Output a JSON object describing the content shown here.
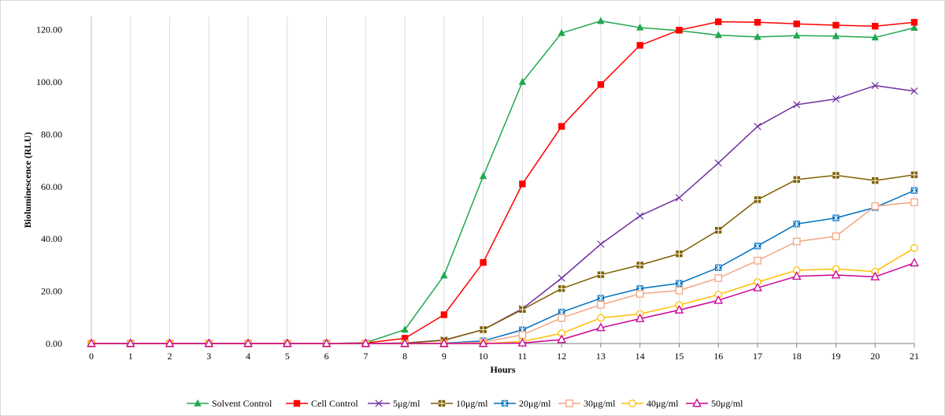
{
  "chart_data": {
    "type": "line",
    "xlabel": "Hours",
    "ylabel": "Bioluminescence (RLU)",
    "x": [
      0,
      1,
      2,
      3,
      4,
      5,
      6,
      7,
      8,
      9,
      10,
      11,
      12,
      13,
      14,
      15,
      16,
      17,
      18,
      19,
      20,
      21
    ],
    "ylim": [
      0,
      120
    ],
    "yticks": [
      "0.00",
      "20.00",
      "40.00",
      "60.00",
      "80.00",
      "100.00",
      "120.00"
    ],
    "grid": "vertical",
    "legend_position": "bottom",
    "series": [
      {
        "name": "Solvent Control",
        "color": "#1fa84f",
        "marker": "triangle",
        "values": [
          0,
          0,
          0,
          0,
          0,
          0,
          0,
          0.3,
          5.3,
          26,
          64,
          100,
          118.7,
          123.3,
          120.8,
          119.6,
          117.9,
          117.2,
          117.7,
          117.5,
          117.0,
          120.7
        ]
      },
      {
        "name": "Cell Control",
        "color": "#ff0000",
        "marker": "square",
        "values": [
          0,
          0,
          0,
          0,
          0,
          0,
          0,
          0.2,
          2.0,
          11,
          31,
          61,
          83,
          99,
          114,
          119.8,
          123,
          122.8,
          122.2,
          121.7,
          121.3,
          122.8
        ]
      },
      {
        "name": "5μg/ml",
        "color": "#7030a0",
        "marker": "x",
        "values": [
          0,
          0,
          0,
          0,
          0,
          0,
          0,
          0,
          0.2,
          1.3,
          5.3,
          13.3,
          25,
          38,
          48.8,
          55.7,
          69,
          83,
          91.3,
          93.5,
          98.6,
          96.5
        ]
      },
      {
        "name": "10μg/ml",
        "color": "#7f6000",
        "marker": "square-plus",
        "values": [
          0,
          0,
          0,
          0,
          0,
          0,
          0,
          0,
          0.1,
          1.2,
          5.3,
          13,
          21,
          26.3,
          30,
          34.3,
          43.3,
          55,
          62.7,
          64.3,
          62.3,
          64.5
        ]
      },
      {
        "name": "20μg/ml",
        "color": "#0070c0",
        "marker": "asterisk-square",
        "values": [
          0,
          0,
          0,
          0,
          0,
          0,
          0,
          0,
          0,
          0.1,
          1.0,
          5.2,
          12,
          17.3,
          21,
          23,
          29,
          37.3,
          45.7,
          48,
          52,
          58.5
        ]
      },
      {
        "name": "30μg/ml",
        "color": "#f4a582",
        "marker": "open-square",
        "values": [
          0,
          0,
          0,
          0,
          0,
          0,
          0,
          0,
          0,
          0,
          0.5,
          3.3,
          9.8,
          14.8,
          19,
          20.3,
          25,
          31.7,
          39,
          41,
          52.5,
          54
        ]
      },
      {
        "name": "40μg/ml",
        "color": "#ffc000",
        "marker": "open-circle",
        "values": [
          0,
          0,
          0,
          0,
          0,
          0,
          0,
          0,
          0,
          0,
          0,
          0.8,
          3.9,
          9.8,
          11.3,
          14.7,
          18.7,
          23.5,
          28,
          28.5,
          27.5,
          36.5
        ]
      },
      {
        "name": "50μg/ml",
        "color": "#cc0099",
        "marker": "open-triangle",
        "values": [
          0,
          0,
          0,
          0,
          0,
          0,
          0,
          0,
          0,
          0,
          0,
          0.2,
          1.5,
          6,
          9.5,
          12.8,
          16.5,
          21.3,
          25.7,
          26.2,
          25.5,
          30.8
        ]
      }
    ]
  }
}
